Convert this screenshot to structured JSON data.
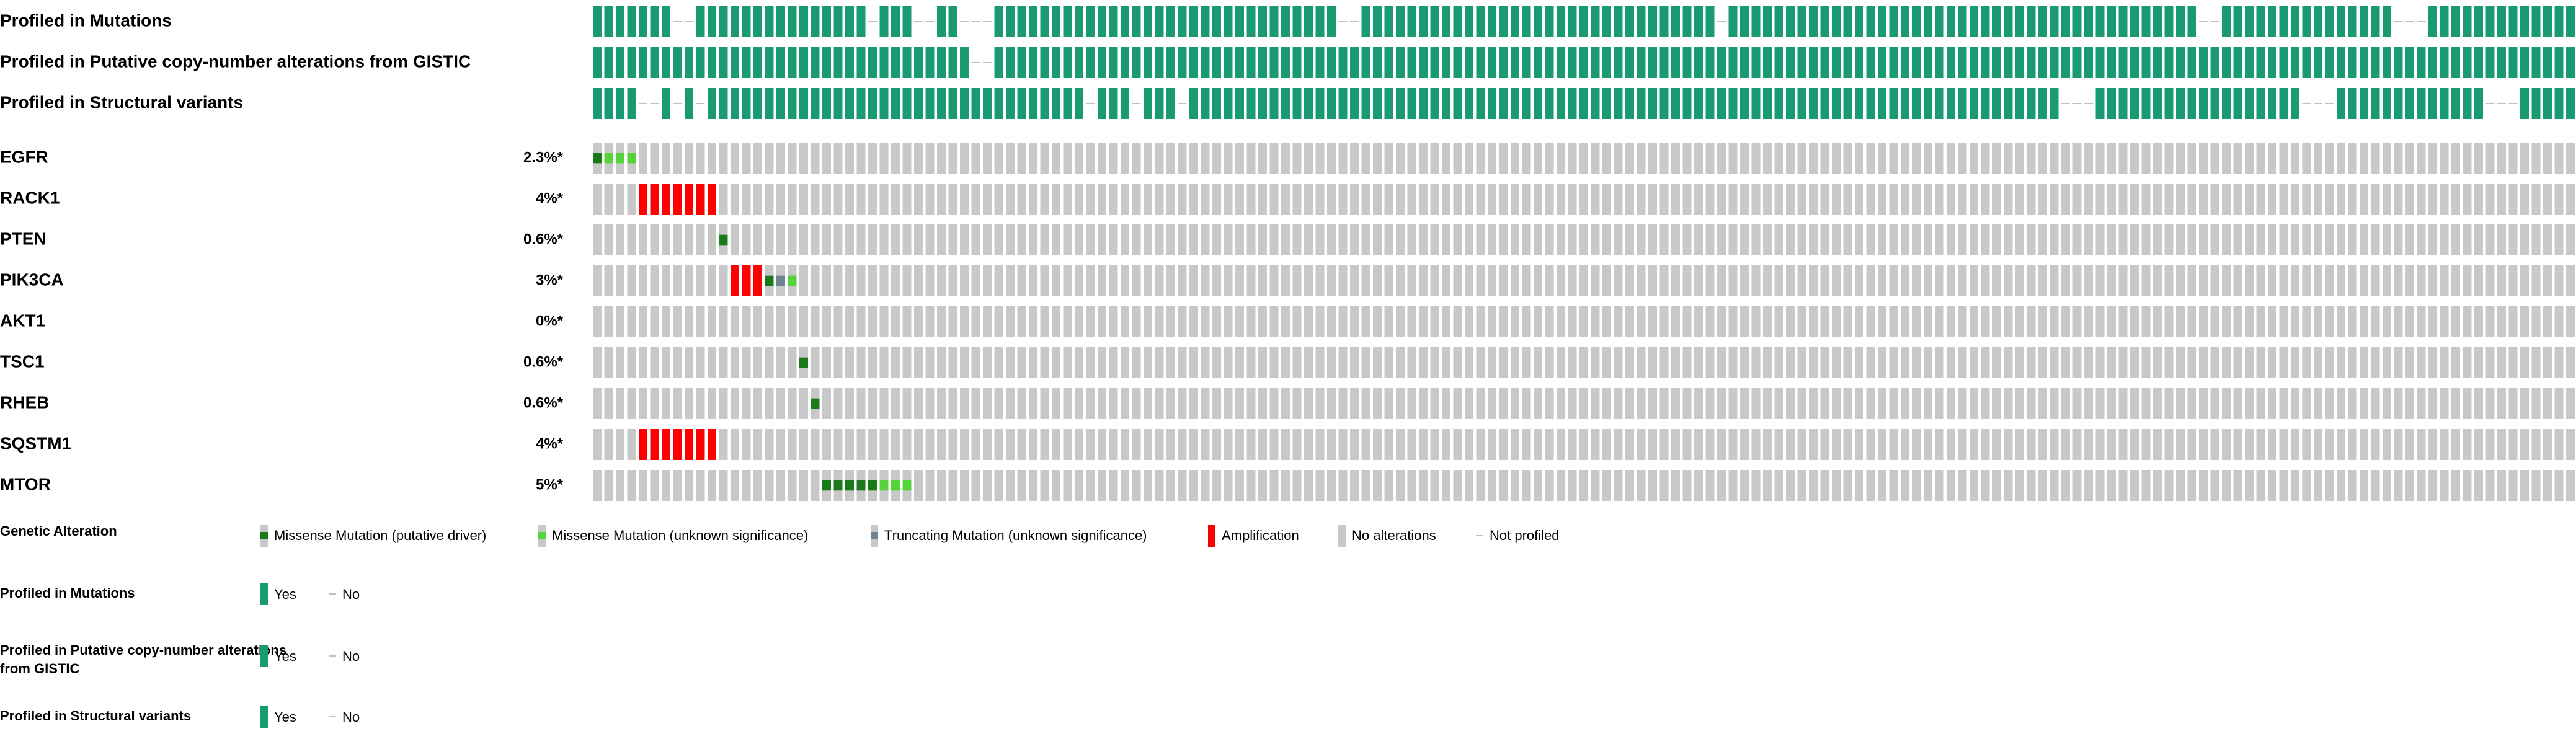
{
  "chart_data": {
    "type": "oncoprint",
    "num_samples": 173,
    "track_colors": {
      "profiled_yes": "#1a9a73",
      "profiled_no": "#bfbfbf",
      "cell_background": "#c8c8c8",
      "missense_driver": "#1a7a1a",
      "missense_unknown": "#55d43a",
      "truncating_unknown": "#6f8291",
      "amplification": "#ff0000"
    },
    "clinical_tracks": [
      {
        "label": "Profiled in Mutations",
        "not_profiled_ranges": [
          [
            7,
            8
          ],
          [
            24,
            24
          ],
          [
            28,
            29
          ],
          [
            32,
            34
          ],
          [
            65,
            66
          ],
          [
            98,
            98
          ],
          [
            140,
            141
          ],
          [
            157,
            159
          ]
        ]
      },
      {
        "label": "Profiled in Putative copy-number alterations from GISTIC",
        "not_profiled_ranges": [
          [
            33,
            34
          ]
        ]
      },
      {
        "label": "Profiled in Structural variants",
        "not_profiled_ranges": [
          [
            4,
            5
          ],
          [
            7,
            7
          ],
          [
            9,
            9
          ],
          [
            43,
            43
          ],
          [
            47,
            47
          ],
          [
            51,
            51
          ],
          [
            128,
            130
          ],
          [
            149,
            151
          ],
          [
            165,
            167
          ]
        ]
      }
    ],
    "genes": [
      {
        "name": "EGFR",
        "percent": "2.3%*",
        "alterations": [
          {
            "sample": 0,
            "type": "missense_driver"
          },
          {
            "sample": 1,
            "type": "missense_unknown"
          },
          {
            "sample": 2,
            "type": "missense_unknown"
          },
          {
            "sample": 3,
            "type": "missense_unknown"
          }
        ]
      },
      {
        "name": "RACK1",
        "percent": "4%*",
        "alterations": [
          {
            "sample": 4,
            "type": "amplification"
          },
          {
            "sample": 5,
            "type": "amplification"
          },
          {
            "sample": 6,
            "type": "amplification"
          },
          {
            "sample": 7,
            "type": "amplification"
          },
          {
            "sample": 8,
            "type": "amplification"
          },
          {
            "sample": 9,
            "type": "amplification"
          },
          {
            "sample": 10,
            "type": "amplification"
          }
        ]
      },
      {
        "name": "PTEN",
        "percent": "0.6%*",
        "alterations": [
          {
            "sample": 11,
            "type": "missense_driver"
          }
        ]
      },
      {
        "name": "PIK3CA",
        "percent": "3%*",
        "alterations": [
          {
            "sample": 12,
            "type": "amplification"
          },
          {
            "sample": 13,
            "type": "amplification"
          },
          {
            "sample": 14,
            "type": "amplification"
          },
          {
            "sample": 15,
            "type": "missense_driver"
          },
          {
            "sample": 16,
            "type": "truncating_unknown"
          },
          {
            "sample": 17,
            "type": "missense_unknown"
          }
        ]
      },
      {
        "name": "AKT1",
        "percent": "0%*",
        "alterations": []
      },
      {
        "name": "TSC1",
        "percent": "0.6%*",
        "alterations": [
          {
            "sample": 18,
            "type": "missense_driver"
          }
        ]
      },
      {
        "name": "RHEB",
        "percent": "0.6%*",
        "alterations": [
          {
            "sample": 19,
            "type": "missense_driver"
          }
        ]
      },
      {
        "name": "SQSTM1",
        "percent": "4%*",
        "alterations": [
          {
            "sample": 4,
            "type": "amplification"
          },
          {
            "sample": 5,
            "type": "amplification"
          },
          {
            "sample": 6,
            "type": "amplification"
          },
          {
            "sample": 7,
            "type": "amplification"
          },
          {
            "sample": 8,
            "type": "amplification"
          },
          {
            "sample": 9,
            "type": "amplification"
          },
          {
            "sample": 10,
            "type": "amplification"
          }
        ]
      },
      {
        "name": "MTOR",
        "percent": "5%*",
        "alterations": [
          {
            "sample": 20,
            "type": "missense_driver"
          },
          {
            "sample": 21,
            "type": "missense_driver"
          },
          {
            "sample": 22,
            "type": "missense_driver"
          },
          {
            "sample": 23,
            "type": "missense_driver"
          },
          {
            "sample": 24,
            "type": "missense_driver"
          },
          {
            "sample": 25,
            "type": "missense_unknown"
          },
          {
            "sample": 26,
            "type": "missense_unknown"
          },
          {
            "sample": 27,
            "type": "missense_unknown"
          }
        ]
      }
    ],
    "legends": [
      {
        "title": "Genetic Alteration",
        "items": [
          {
            "label": "Missense Mutation (putative driver)",
            "type": "missense_driver"
          },
          {
            "label": "Missense Mutation (unknown significance)",
            "type": "missense_unknown"
          },
          {
            "label": "Truncating Mutation (unknown significance)",
            "type": "truncating_unknown"
          },
          {
            "label": "Amplification",
            "type": "amplification"
          },
          {
            "label": "No alterations",
            "type": "none"
          },
          {
            "label": "Not profiled",
            "type": "not_profiled"
          }
        ]
      },
      {
        "title": "Profiled in Mutations",
        "items": [
          {
            "label": "Yes",
            "type": "yes"
          },
          {
            "label": "No",
            "type": "no"
          }
        ]
      },
      {
        "title": "Profiled in Putative copy-number alterations from GISTIC",
        "items": [
          {
            "label": "Yes",
            "type": "yes"
          },
          {
            "label": "No",
            "type": "no"
          }
        ]
      },
      {
        "title": "Profiled in Structural variants",
        "items": [
          {
            "label": "Yes",
            "type": "yes"
          },
          {
            "label": "No",
            "type": "no"
          }
        ]
      }
    ]
  }
}
